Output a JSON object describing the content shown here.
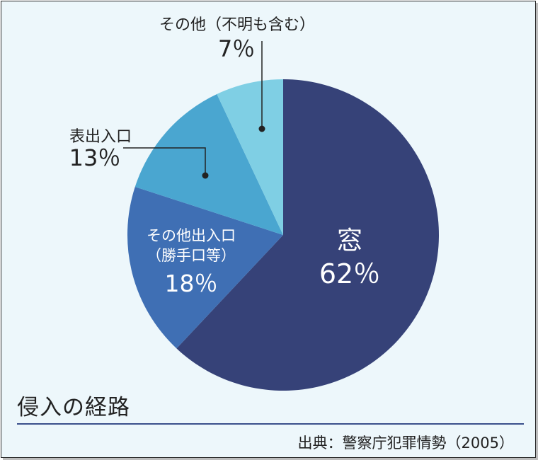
{
  "chart_data": {
    "type": "pie",
    "title": "侵入の経路",
    "source": "出典：警察庁犯罪情勢（2005）",
    "slices": [
      {
        "label": "窓",
        "value": 62,
        "display": "62％",
        "color": "#364278"
      },
      {
        "label": "その他出入口",
        "sublabel": "（勝手口等）",
        "value": 18,
        "display": "18％",
        "color": "#3f6fb4"
      },
      {
        "label": "表出入口",
        "value": 13,
        "display": "13％",
        "color": "#4aa6d0"
      },
      {
        "label": "その他（不明も含む）",
        "value": 7,
        "display": "7％",
        "color": "#7fcfe4"
      }
    ]
  },
  "colors": {
    "background": "#edf7fb",
    "leader": "#222222",
    "rule": "#3a4f8c"
  }
}
